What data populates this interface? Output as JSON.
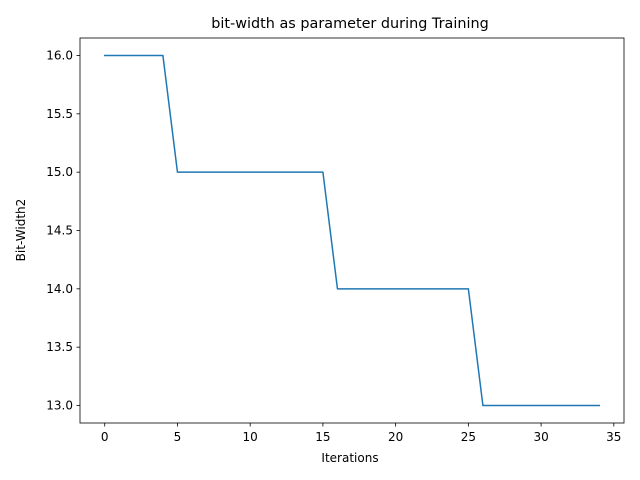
{
  "chart_data": {
    "type": "line",
    "title": "bit-width as parameter during Training",
    "xlabel": "Iterations",
    "ylabel": "Bit-Width2",
    "xlim": [
      -1.7,
      35.7
    ],
    "ylim": [
      12.85,
      16.15
    ],
    "xticks": [
      0,
      5,
      10,
      15,
      20,
      25,
      30,
      35
    ],
    "yticks": [
      13.0,
      13.5,
      14.0,
      14.5,
      15.0,
      15.5,
      16.0
    ],
    "xtick_labels": [
      "0",
      "5",
      "10",
      "15",
      "20",
      "25",
      "30",
      "35"
    ],
    "ytick_labels": [
      "13.0",
      "13.5",
      "14.0",
      "14.5",
      "15.0",
      "15.5",
      "16.0"
    ],
    "grid": false,
    "legend": "none",
    "series": [
      {
        "color": "#1f77b4",
        "x": [
          0,
          1,
          2,
          3,
          4,
          5,
          6,
          7,
          8,
          9,
          10,
          11,
          12,
          13,
          14,
          15,
          16,
          17,
          18,
          19,
          20,
          21,
          22,
          23,
          24,
          25,
          26,
          27,
          28,
          29,
          30,
          31,
          32,
          33,
          34
        ],
        "values": [
          16,
          16,
          16,
          16,
          16,
          15,
          15,
          15,
          15,
          15,
          15,
          15,
          15,
          15,
          15,
          15,
          14,
          14,
          14,
          14,
          14,
          14,
          14,
          14,
          14,
          14,
          13,
          13,
          13,
          13,
          13,
          13,
          13,
          13,
          13
        ]
      }
    ]
  }
}
